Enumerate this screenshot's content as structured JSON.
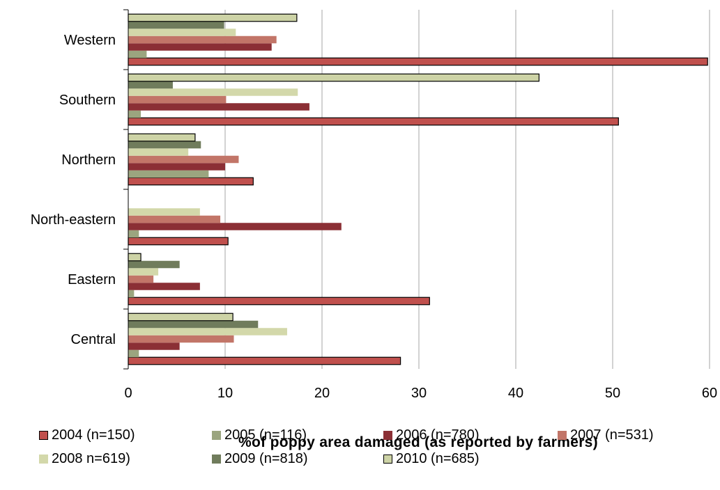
{
  "chart_data": {
    "type": "bar",
    "orientation": "horizontal",
    "title": "",
    "xlabel": "%of poppy area damaged (as reported by farmers)",
    "ylabel": "",
    "xlim": [
      0,
      60
    ],
    "xticks": [
      "0",
      "10",
      "20",
      "30",
      "40",
      "50",
      "60"
    ],
    "grid": "vertical",
    "legend_position": "bottom",
    "categories": [
      "Western",
      "Southern",
      "Northern",
      "North-eastern",
      "Eastern",
      "Central"
    ],
    "series": [
      {
        "name": "2004 (n=150)",
        "color": "#C0504D",
        "outlined": true,
        "values": [
          59.8,
          50.6,
          12.9,
          10.3,
          31.1,
          28.1
        ]
      },
      {
        "name": "2005 (n=116)",
        "color": "#9BA57F",
        "outlined": false,
        "values": [
          1.9,
          1.3,
          8.3,
          1.1,
          0.6,
          1.1
        ]
      },
      {
        "name": "2006 (n=780)",
        "color": "#8B2F35",
        "outlined": false,
        "values": [
          14.8,
          18.7,
          10.0,
          22.0,
          7.4,
          5.3
        ]
      },
      {
        "name": "2007 (n=531)",
        "color": "#C27568",
        "outlined": false,
        "values": [
          15.3,
          10.1,
          11.4,
          9.5,
          2.6,
          10.9
        ]
      },
      {
        "name": "2008 n=619)",
        "color": "#D3D8AA",
        "outlined": false,
        "values": [
          11.1,
          17.5,
          6.2,
          7.4,
          3.1,
          16.4
        ]
      },
      {
        "name": "2009 (n=818)",
        "color": "#707C5C",
        "outlined": false,
        "values": [
          9.9,
          4.6,
          7.5,
          0.0,
          5.3,
          13.4
        ]
      },
      {
        "name": "2010 (n=685)",
        "color": "#CDD3A6",
        "outlined": true,
        "values": [
          17.4,
          42.4,
          6.9,
          0.0,
          1.3,
          10.8
        ]
      }
    ]
  }
}
